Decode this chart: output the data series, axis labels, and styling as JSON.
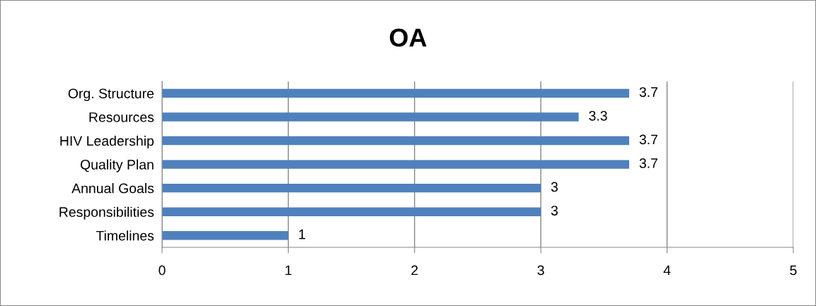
{
  "chart_data": {
    "type": "bar",
    "orientation": "horizontal",
    "title": "OA",
    "categories": [
      "Org. Structure",
      "Resources",
      "HIV Leadership",
      "Quality Plan",
      "Annual Goals",
      "Responsibilities",
      "Timelines"
    ],
    "values": [
      3.7,
      3.3,
      3.7,
      3.7,
      3,
      3,
      1
    ],
    "color": "#4f81bd",
    "xlim": [
      0,
      5
    ],
    "xticks": [
      0,
      1,
      2,
      3,
      4,
      5
    ],
    "grid": "x",
    "data_labels": true,
    "legend": false
  }
}
